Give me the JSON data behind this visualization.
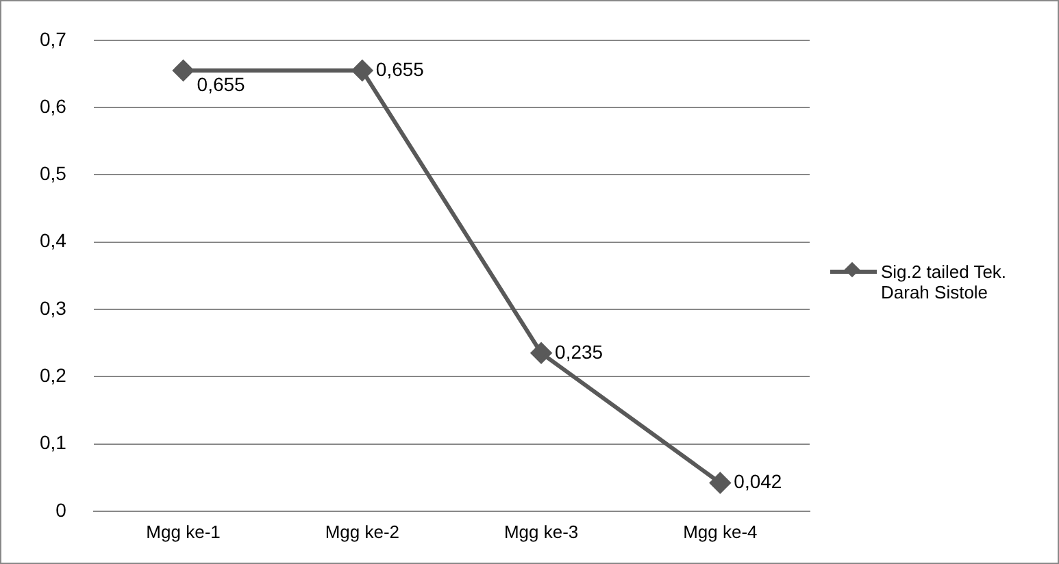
{
  "chart_data": {
    "type": "line",
    "categories": [
      "Mgg ke-1",
      "Mgg ke-2",
      "Mgg ke-3",
      "Mgg ke-4"
    ],
    "series": [
      {
        "name": "Sig.2 tailed Tek. Darah Sistole",
        "color": "#595959",
        "values": [
          0.655,
          0.655,
          0.235,
          0.042
        ],
        "value_labels": [
          "0,655",
          "0,655",
          "0,235",
          "0,042"
        ]
      }
    ],
    "ylim": [
      0,
      0.7
    ],
    "yticks": [
      0,
      {
        "value": 0.1,
        "label": "0,1"
      },
      {
        "value": 0.2,
        "label": "0,2"
      },
      {
        "value": 0.3,
        "label": "0,3"
      },
      {
        "value": 0.4,
        "label": "0,4"
      },
      {
        "value": 0.5,
        "label": "0,5"
      },
      {
        "value": 0.6,
        "label": "0,6"
      },
      {
        "value": 0.7,
        "label": "0,7"
      }
    ],
    "grid": "y",
    "legend": "right",
    "marker": "diamond",
    "line_style": "solid"
  }
}
